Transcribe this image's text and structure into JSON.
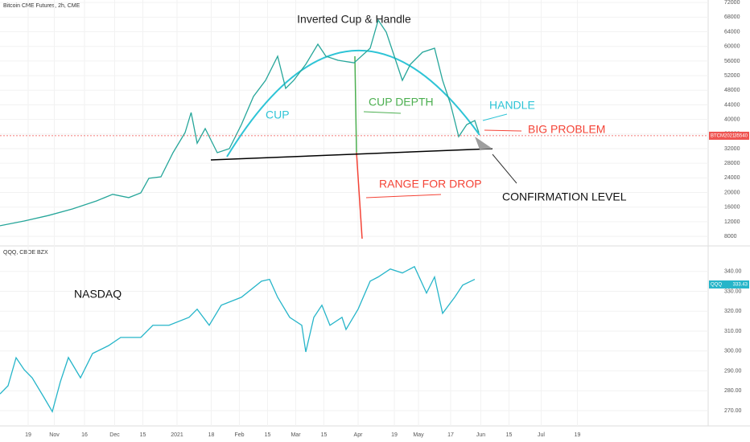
{
  "chart_data": [
    {
      "type": "line",
      "title": "Bitcoin CME Futures, 2h, CME",
      "color": "#26a69a",
      "x": [
        4,
        16,
        28,
        40,
        52,
        60,
        68,
        74,
        78,
        84,
        90,
        96,
        99,
        102,
        106,
        112,
        118,
        124,
        130,
        136,
        142,
        146,
        150,
        156,
        162,
        166,
        172,
        180,
        188,
        192,
        196,
        200,
        204,
        208,
        214,
        220,
        224,
        228,
        232,
        236,
        240,
        242
      ],
      "values": [
        10900,
        12200,
        13700,
        15500,
        17700,
        19500,
        18600,
        19900,
        23900,
        24300,
        30900,
        36400,
        41900,
        33500,
        37500,
        30900,
        32000,
        38600,
        46300,
        50700,
        57300,
        48500,
        50700,
        55100,
        60600,
        57300,
        56200,
        55500,
        59500,
        67200,
        63900,
        57300,
        50700,
        55100,
        58400,
        59500,
        50700,
        44100,
        35300,
        38600,
        39700,
        36400
      ],
      "xlim": [
        4,
        356
      ],
      "ylim": [
        5600,
        72700
      ],
      "yticks": [
        8000,
        12000,
        16000,
        20000,
        24000,
        28000,
        32000,
        36000,
        40000,
        44000,
        48000,
        52000,
        56000,
        60000,
        64000,
        68000,
        72000
      ],
      "last_symbol": "BTCM2021",
      "last_value": 35540,
      "last_color": "#ef5350",
      "annotations": [
        "Inverted Cup & Handle",
        "CUP",
        "CUP DEPTH",
        "HANDLE",
        "BIG PROBLEM",
        "RANGE FOR DROP",
        "CONFIRMATION LEVEL"
      ]
    },
    {
      "type": "line",
      "title": "QQQ, CBOE BZX",
      "color": "#26b5c9",
      "x": [
        4,
        8,
        12,
        16,
        20,
        26,
        30,
        34,
        38,
        44,
        50,
        58,
        64,
        74,
        80,
        88,
        98,
        102,
        108,
        114,
        124,
        134,
        138,
        142,
        148,
        154,
        156,
        160,
        164,
        168,
        174,
        176,
        182,
        188,
        192,
        198,
        204,
        210,
        216,
        220,
        224,
        230,
        234,
        240
      ],
      "values": [
        278.4,
        282.5,
        296.6,
        290.6,
        286.5,
        276.4,
        269.5,
        284.5,
        296.7,
        286.5,
        298.7,
        302.7,
        306.8,
        306.8,
        312.9,
        312.9,
        316.9,
        321.0,
        312.9,
        323.0,
        327.0,
        335.1,
        336.0,
        327.0,
        316.9,
        312.9,
        299.5,
        316.9,
        323.0,
        312.9,
        316.9,
        310.8,
        321.0,
        335.1,
        337.2,
        341.2,
        339.2,
        342.4,
        329.1,
        337.2,
        318.9,
        327.0,
        333.1,
        336.0
      ],
      "xlim": [
        4,
        356
      ],
      "ylim": [
        262.3,
        352
      ],
      "yticks": [
        {
          "value": 270,
          "label": "270.00"
        },
        {
          "value": 280,
          "label": "280.00"
        },
        {
          "value": 290,
          "label": "290.00"
        },
        {
          "value": 300,
          "label": "300.00"
        },
        {
          "value": 310,
          "label": "310.00"
        },
        {
          "value": 320,
          "label": "320.00"
        },
        {
          "value": 330,
          "label": "330.00"
        },
        {
          "value": 340,
          "label": "340.00"
        }
      ],
      "xticks": [
        {
          "value": 18,
          "label": "19"
        },
        {
          "value": 31,
          "label": "Nov"
        },
        {
          "value": 46,
          "label": "16"
        },
        {
          "value": 61,
          "label": "Dec"
        },
        {
          "value": 75,
          "label": "15"
        },
        {
          "value": 92,
          "label": "2021"
        },
        {
          "value": 109,
          "label": "18"
        },
        {
          "value": 123,
          "label": "Feb"
        },
        {
          "value": 137,
          "label": "15"
        },
        {
          "value": 151,
          "label": "Mar"
        },
        {
          "value": 165,
          "label": "15"
        },
        {
          "value": 182,
          "label": "Apr"
        },
        {
          "value": 200,
          "label": "19"
        },
        {
          "value": 212,
          "label": "May"
        },
        {
          "value": 228,
          "label": "17"
        },
        {
          "value": 243,
          "label": "Jun"
        },
        {
          "value": 257,
          "label": "15"
        },
        {
          "value": 273,
          "label": "Jul"
        },
        {
          "value": 291,
          "label": "19"
        }
      ],
      "last_symbol": "QQQ",
      "last_value": 333.43,
      "annotations": [
        "NASDAQ"
      ]
    }
  ]
}
